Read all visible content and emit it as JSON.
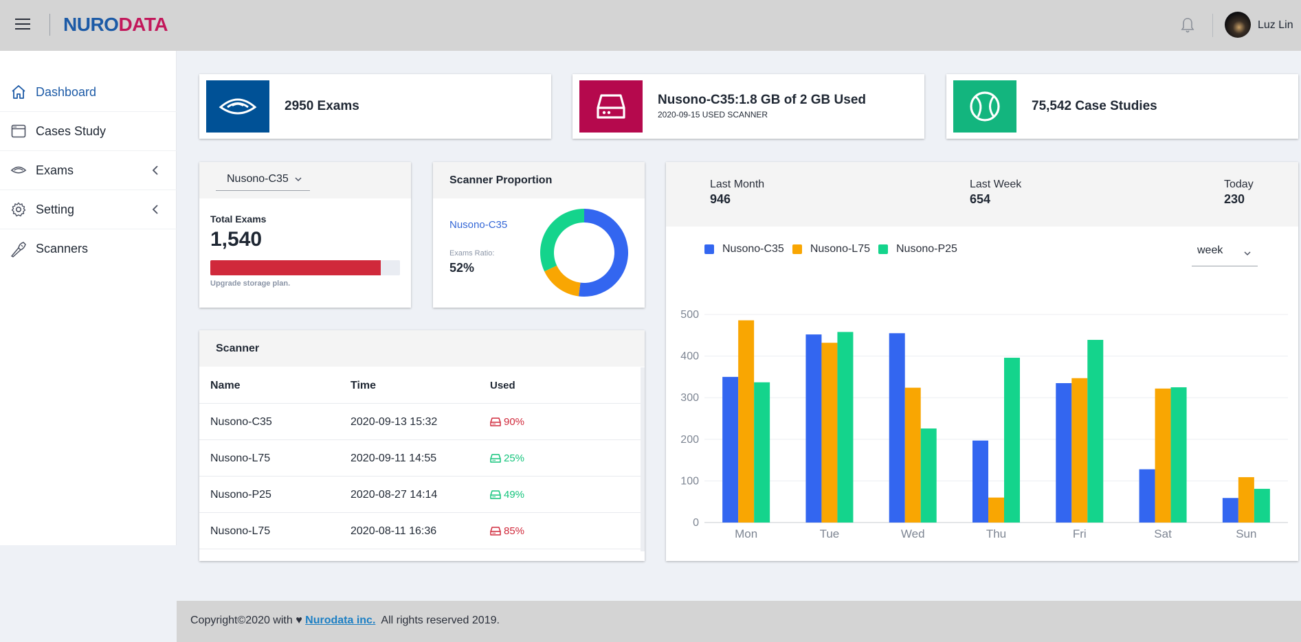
{
  "header": {
    "logo_part1": "NURO",
    "logo_part2": "DATA",
    "user_name": "Luz Lin"
  },
  "sidebar": {
    "items": [
      {
        "label": "Dashboard",
        "icon": "home-icon"
      },
      {
        "label": "Cases Study",
        "icon": "window-icon"
      },
      {
        "label": "Exams",
        "icon": "ultrasound-probe-icon"
      },
      {
        "label": "Setting",
        "icon": "gear-icon"
      },
      {
        "label": "Scanners",
        "icon": "scanner-wand-icon"
      }
    ]
  },
  "stats": {
    "exams": {
      "title": "2950 Exams",
      "color": "#005196"
    },
    "storage": {
      "title": "Nusono-C35:1.8 GB of 2 GB Used",
      "sub": "2020-09-15 USED SCANNER",
      "color": "#b5094d"
    },
    "cases": {
      "title": "75,542 Case Studies",
      "color": "#13b57e"
    }
  },
  "total_exams": {
    "scanner_selected": "Nusono-C35",
    "label": "Total Exams",
    "value": "1,540",
    "progress_fraction": 0.9,
    "note": "Upgrade storage plan."
  },
  "proportion": {
    "title": "Scanner Proportion",
    "scanner": "Nusono-C35",
    "ratio_label": "Exams Ratio:",
    "ratio_value": "52%",
    "slices": [
      {
        "name": "Nusono-C35",
        "value": 52,
        "color": "#3366f0"
      },
      {
        "name": "Nusono-L75",
        "value": 16,
        "color": "#f9a602"
      },
      {
        "name": "Nusono-P25",
        "value": 32,
        "color": "#14d48c"
      }
    ]
  },
  "scanner_table": {
    "title": "Scanner",
    "columns": [
      "Name",
      "Time",
      "Used"
    ],
    "rows": [
      {
        "name": "Nusono-C35",
        "time": "2020-09-13 15:32",
        "used": "90%",
        "status_color": "#d0293b"
      },
      {
        "name": "Nusono-L75",
        "time": "2020-09-11 14:55",
        "used": "25%",
        "status_color": "#14c47c"
      },
      {
        "name": "Nusono-P25",
        "time": "2020-08-27 14:14",
        "used": "49%",
        "status_color": "#14c47c"
      },
      {
        "name": "Nusono-L75",
        "time": "2020-08-11 16:36",
        "used": "85%",
        "status_color": "#d0293b"
      }
    ]
  },
  "summary": {
    "last_month": {
      "label": "Last Month",
      "value": "946"
    },
    "last_week": {
      "label": "Last Week",
      "value": "654"
    },
    "today": {
      "label": "Today",
      "value": "230"
    }
  },
  "period_select": "week",
  "chart_data": {
    "type": "bar",
    "categories": [
      "Mon",
      "Tue",
      "Wed",
      "Thu",
      "Fri",
      "Sat",
      "Sun"
    ],
    "series": [
      {
        "name": "Nusono-C35",
        "color": "#3366f0",
        "values": [
          350,
          452,
          455,
          197,
          335,
          128,
          59
        ]
      },
      {
        "name": "Nusono-L75",
        "color": "#f9a602",
        "values": [
          486,
          432,
          324,
          60,
          347,
          322,
          109
        ]
      },
      {
        "name": "Nusono-P25",
        "color": "#14d48c",
        "values": [
          337,
          458,
          226,
          396,
          439,
          325,
          81
        ]
      }
    ],
    "ylim": [
      0,
      500
    ],
    "yticks": [
      0,
      100,
      200,
      300,
      400,
      500
    ],
    "grid": true,
    "legend": "top-left"
  },
  "footer": {
    "prefix": "Copyright©2020 with ♥",
    "link": "Nurodata inc.",
    "suffix": "All rights reserved 2019."
  }
}
